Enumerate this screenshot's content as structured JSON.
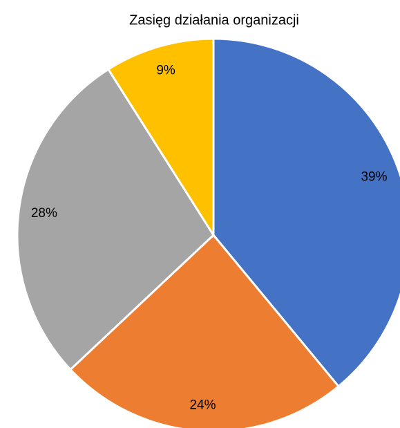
{
  "chart_data": {
    "type": "pie",
    "title": "Zasięg działania organizacji",
    "values": [
      39,
      24,
      28,
      9
    ],
    "value_labels": [
      "39%",
      "24%",
      "28%",
      "9%"
    ],
    "colors": [
      "#4472c4",
      "#ed7d31",
      "#a5a5a5",
      "#ffc000"
    ]
  }
}
